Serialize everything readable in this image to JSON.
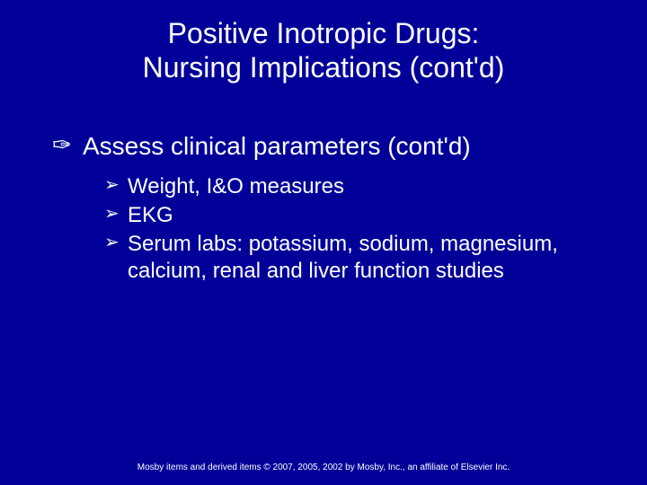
{
  "background_color": "#000099",
  "text_color": "#ffffff",
  "title": {
    "line1": "Positive Inotropic Drugs:",
    "line2": "Nursing Implications (cont'd)",
    "fontsize": 32
  },
  "top_bullet_glyph": "✑",
  "sub_bullet_glyph": "➢",
  "main": {
    "heading": "Assess clinical parameters (cont'd)",
    "heading_fontsize": 28,
    "items": [
      "Weight, I&O measures",
      "EKG",
      "Serum labs: potassium, sodium, magnesium, calcium, renal and liver function studies"
    ],
    "item_fontsize": 24
  },
  "footer": "Mosby items and derived items © 2007, 2005, 2002 by Mosby, Inc., an affiliate of Elsevier Inc.",
  "footer_fontsize": 10
}
